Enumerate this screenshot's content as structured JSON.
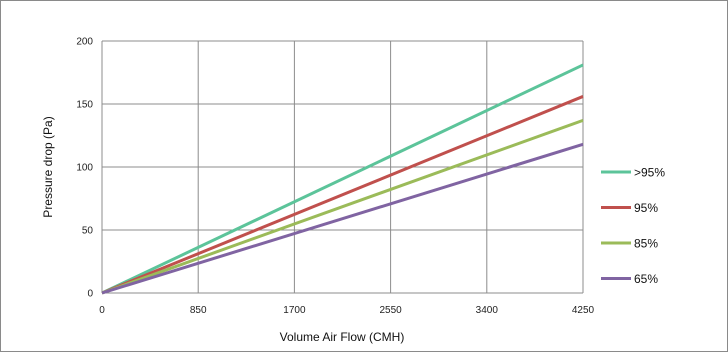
{
  "chart_data": {
    "type": "line",
    "xlabel": "Volume Air Flow (CMH)",
    "ylabel": "Pressure drop (Pa)",
    "x_ticks": [
      "0",
      "850",
      "1700",
      "2550",
      "3400",
      "4250"
    ],
    "y_ticks": [
      "0",
      "50",
      "100",
      "150",
      "200"
    ],
    "xlim": [
      0,
      4250
    ],
    "ylim": [
      0,
      200
    ],
    "grid": true,
    "legend_position": "right",
    "x": [
      0,
      4250
    ],
    "series": [
      {
        "name": ">95%",
        "color": "#5cc49a",
        "values": [
          0,
          181
        ]
      },
      {
        "name": "95%",
        "color": "#c0504d",
        "values": [
          0,
          156
        ]
      },
      {
        "name": "85%",
        "color": "#9bbb59",
        "values": [
          0,
          137
        ]
      },
      {
        "name": "65%",
        "color": "#8064a2",
        "values": [
          0,
          118
        ]
      }
    ]
  }
}
